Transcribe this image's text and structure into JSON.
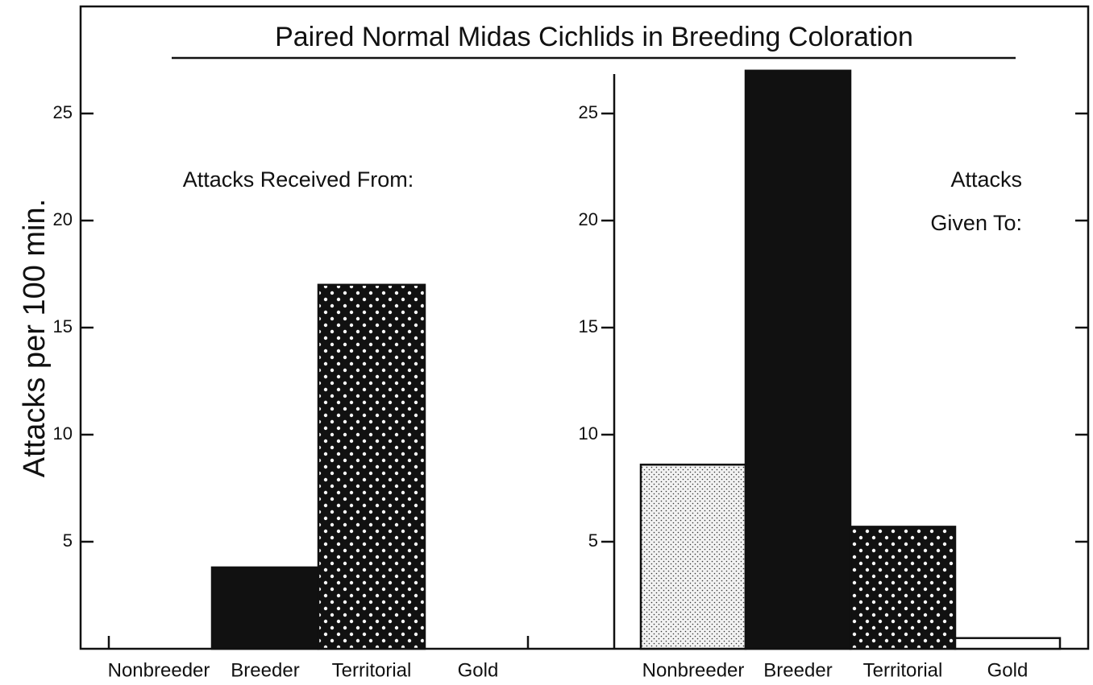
{
  "title": "Paired Normal Midas Cichlids in Breeding Coloration",
  "y_label": "Attacks per 100 min.",
  "chart_data": [
    {
      "type": "bar",
      "annotation": [
        "Attacks Received From:"
      ],
      "categories": [
        "Nonbreeder",
        "Breeder",
        "Territorial",
        "Gold"
      ],
      "values": [
        0,
        3.8,
        17,
        0
      ],
      "patterns": [
        "stipple",
        "solid",
        "dots",
        "open"
      ],
      "ylim": [
        0,
        30
      ],
      "yticks": [
        5,
        10,
        15,
        20,
        25
      ]
    },
    {
      "type": "bar",
      "annotation": [
        "Attacks",
        "Given To:"
      ],
      "categories": [
        "Nonbreeder",
        "Breeder",
        "Territorial",
        "Gold"
      ],
      "values": [
        8.6,
        27,
        5.7,
        0.5
      ],
      "patterns": [
        "stipple",
        "solid",
        "dots",
        "open"
      ],
      "ylim": [
        0,
        30
      ],
      "yticks": [
        5,
        10,
        15,
        20,
        25
      ]
    }
  ]
}
